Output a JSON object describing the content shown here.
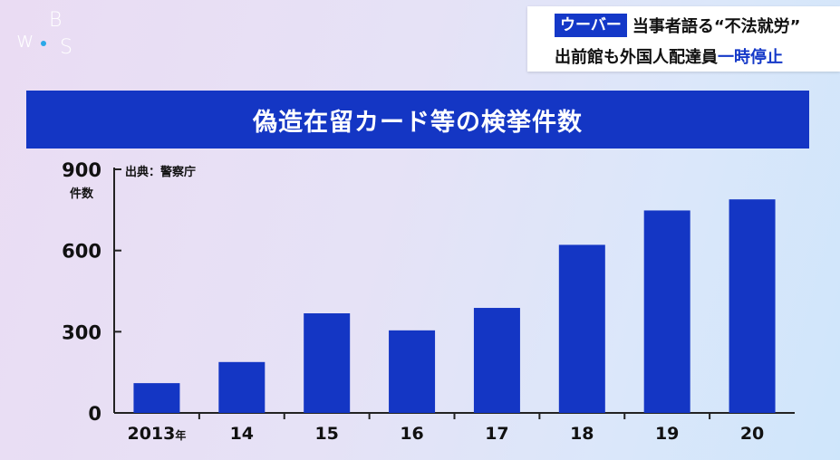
{
  "logo": {
    "letters": [
      "w",
      "B",
      "S"
    ],
    "dot_color": "#2aa8e8"
  },
  "ticker": {
    "tag": "ウーバー",
    "headline": "当事者語る“不法就労”",
    "line2_prefix": "出前館も外国人配達員",
    "line2_highlight": "一時停止"
  },
  "colors": {
    "bar": "#1436c4",
    "banner": "#1436c4",
    "accent": "#1438c8"
  },
  "chart_data": {
    "type": "bar",
    "title": "偽造在留カード等の検挙件数",
    "source": "出典：警察庁",
    "ylabel": "件数",
    "ylim": [
      0,
      900
    ],
    "yticks": [
      0,
      300,
      600,
      900
    ],
    "categories": [
      "2013",
      "14",
      "15",
      "16",
      "17",
      "18",
      "19",
      "20"
    ],
    "category_suffix_first": "年",
    "values": [
      110,
      188,
      368,
      305,
      388,
      621,
      748,
      789
    ],
    "grid": false
  }
}
